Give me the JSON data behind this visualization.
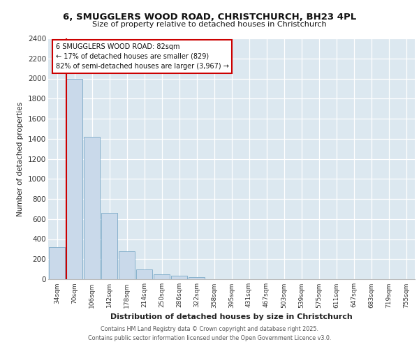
{
  "title": "6, SMUGGLERS WOOD ROAD, CHRISTCHURCH, BH23 4PL",
  "subtitle": "Size of property relative to detached houses in Christchurch",
  "xlabel": "Distribution of detached houses by size in Christchurch",
  "ylabel": "Number of detached properties",
  "categories": [
    "34sqm",
    "70sqm",
    "106sqm",
    "142sqm",
    "178sqm",
    "214sqm",
    "250sqm",
    "286sqm",
    "322sqm",
    "358sqm",
    "395sqm",
    "431sqm",
    "467sqm",
    "503sqm",
    "539sqm",
    "575sqm",
    "611sqm",
    "647sqm",
    "683sqm",
    "719sqm",
    "755sqm"
  ],
  "values": [
    320,
    2000,
    1420,
    660,
    280,
    100,
    50,
    35,
    20,
    0,
    0,
    0,
    0,
    0,
    0,
    0,
    0,
    0,
    0,
    0,
    0
  ],
  "bar_color": "#c9d9ea",
  "bar_edge_color": "#7baac8",
  "vline_color": "#cc0000",
  "annotation_text": "6 SMUGGLERS WOOD ROAD: 82sqm\n← 17% of detached houses are smaller (829)\n82% of semi-detached houses are larger (3,967) →",
  "annotation_box_facecolor": "#ffffff",
  "annotation_box_edgecolor": "#cc0000",
  "ylim": [
    0,
    2400
  ],
  "yticks": [
    0,
    200,
    400,
    600,
    800,
    1000,
    1200,
    1400,
    1600,
    1800,
    2000,
    2200,
    2400
  ],
  "plot_bg_color": "#dce8f0",
  "fig_bg_color": "#ffffff",
  "grid_color": "#ffffff",
  "footer_line1": "Contains HM Land Registry data © Crown copyright and database right 2025.",
  "footer_line2": "Contains public sector information licensed under the Open Government Licence v3.0."
}
